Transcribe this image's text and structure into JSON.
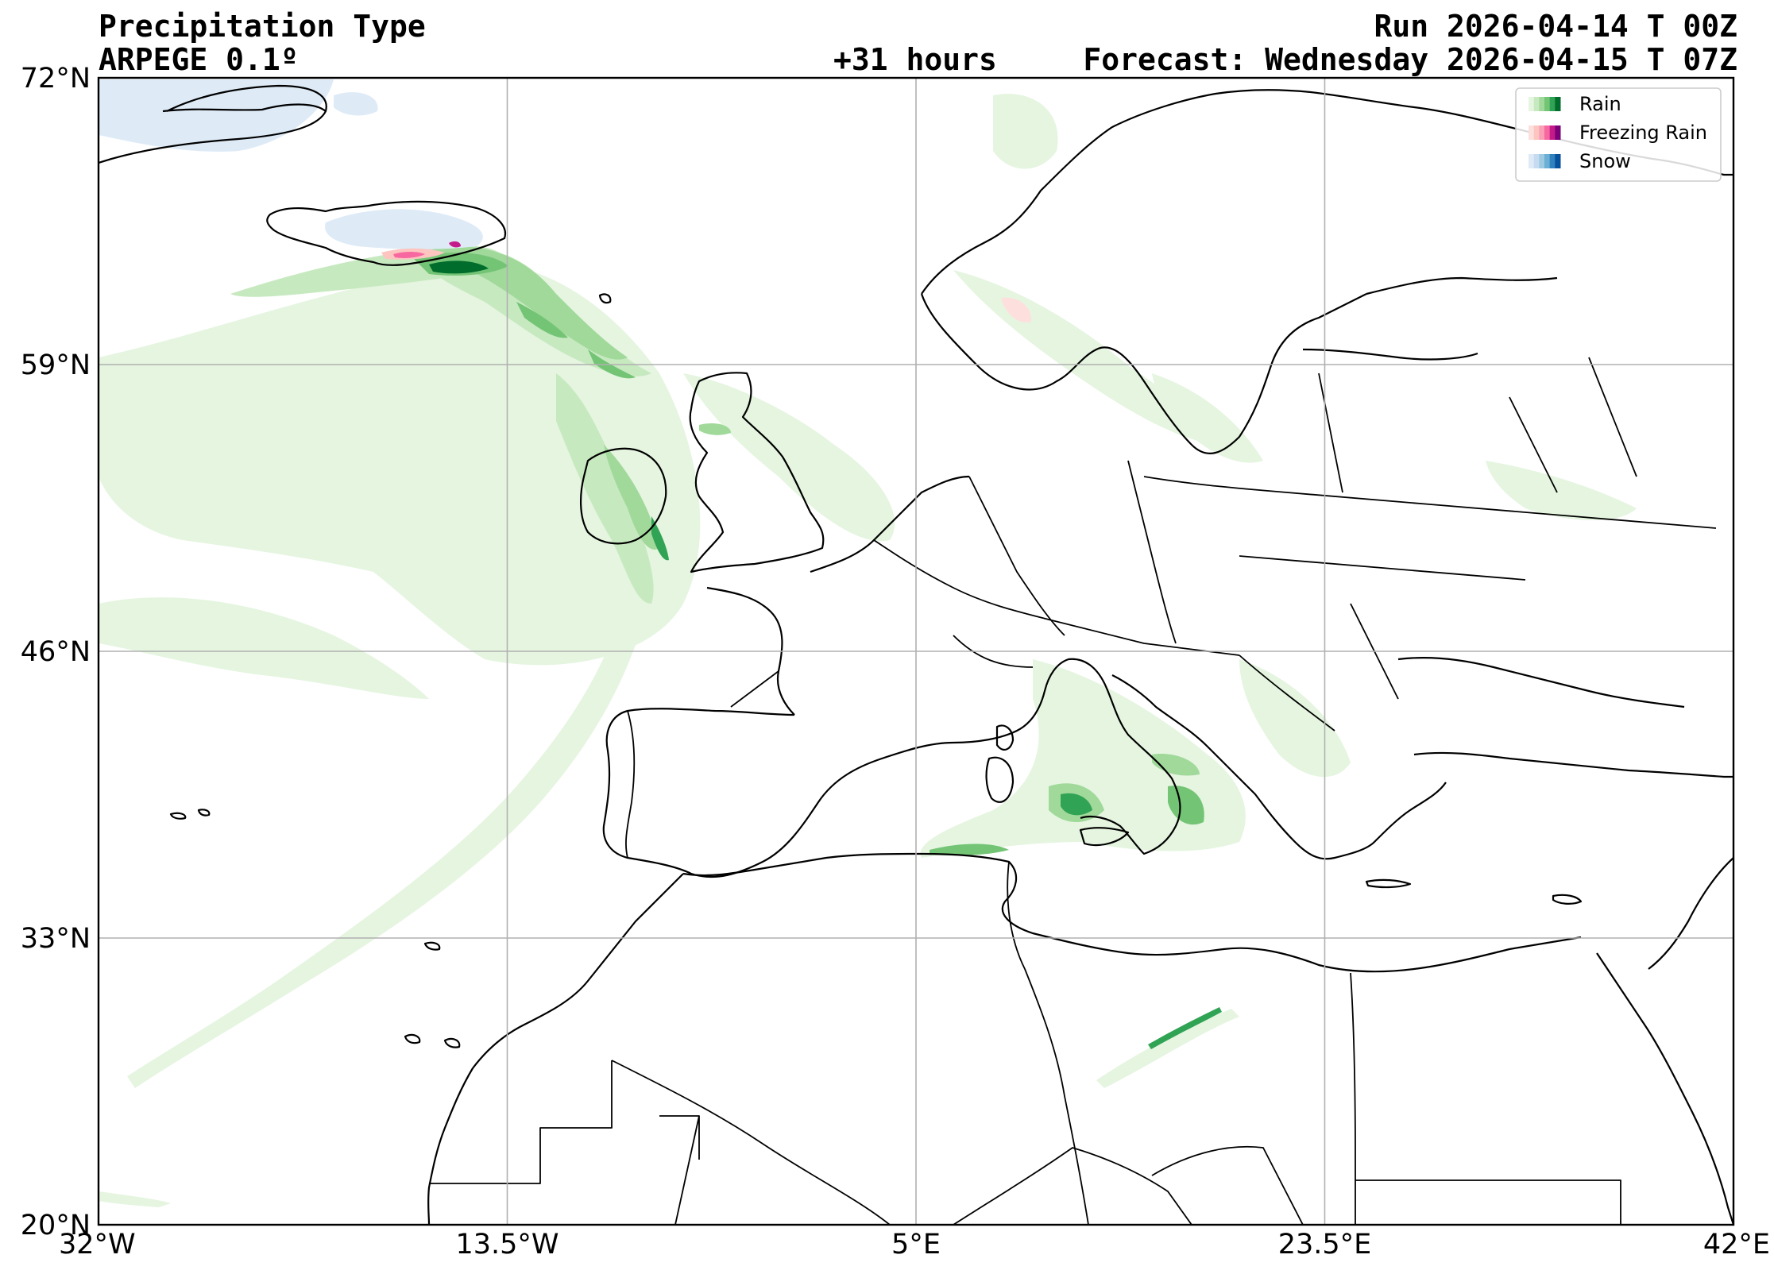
{
  "header": {
    "title": "Precipitation Type",
    "model": "ARPEGE 0.1º",
    "run": "Run 2026-04-14 T 00Z",
    "lead": "+31 hours",
    "forecast": "Forecast: Wednesday 2026-04-15 T 07Z"
  },
  "map": {
    "lon_range": [
      -32,
      42
    ],
    "lat_range": [
      20,
      72
    ],
    "lon_ticks": [
      {
        "value": -32,
        "label": "32°W"
      },
      {
        "value": -13.5,
        "label": "13.5°W"
      },
      {
        "value": 5,
        "label": "5°E"
      },
      {
        "value": 23.5,
        "label": "23.5°E"
      },
      {
        "value": 42,
        "label": "42°E"
      }
    ],
    "lat_ticks": [
      {
        "value": 72,
        "label": "72°N"
      },
      {
        "value": 59,
        "label": "59°N"
      },
      {
        "value": 46,
        "label": "46°N"
      },
      {
        "value": 33,
        "label": "33°N"
      },
      {
        "value": 20,
        "label": "20°N"
      }
    ],
    "grid": true
  },
  "legend": {
    "placement": "top-right",
    "items": [
      {
        "label": "Rain",
        "colors": [
          "#e5f5e0",
          "#c7e9c0",
          "#a1d99b",
          "#74c476",
          "#31a354",
          "#006d2c"
        ]
      },
      {
        "label": "Freezing Rain",
        "colors": [
          "#fde0dd",
          "#fcc5c0",
          "#fa9fb5",
          "#f768a1",
          "#c51b8a",
          "#7a0177"
        ]
      },
      {
        "label": "Snow",
        "colors": [
          "#deebf7",
          "#c6dbef",
          "#9ecae1",
          "#6baed6",
          "#3182bd",
          "#08519c"
        ]
      }
    ]
  },
  "precip": {
    "rain_colors": [
      "#e5f5e0",
      "#c7e9c0",
      "#a1d99b",
      "#74c476",
      "#31a354",
      "#006d2c"
    ],
    "freezing_colors": [
      "#fde0dd",
      "#fcc5c0",
      "#f768a1",
      "#c51b8a"
    ],
    "snow_colors": [
      "#deebf7",
      "#c6dbef"
    ]
  }
}
